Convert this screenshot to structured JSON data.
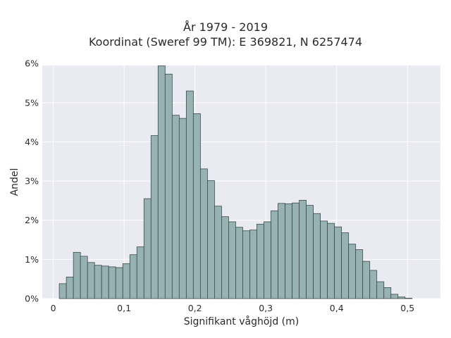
{
  "chart_data": {
    "type": "bar",
    "title": "År 1979 - 2019",
    "subtitle": "Koordinat (Sweref 99 TM): E 369821, N 6257474",
    "xlabel": "Signifikant våghöjd (m)",
    "ylabel": "Andel",
    "xlim": [
      -0.0155,
      0.5465
    ],
    "ylim": [
      0,
      0.0595
    ],
    "x_ticks": [
      {
        "value": 0.0,
        "label": "0"
      },
      {
        "value": 0.1,
        "label": "0,1"
      },
      {
        "value": 0.2,
        "label": "0,2"
      },
      {
        "value": 0.3,
        "label": "0,3"
      },
      {
        "value": 0.4,
        "label": "0,4"
      },
      {
        "value": 0.5,
        "label": "0,5"
      }
    ],
    "y_ticks": [
      {
        "value": 0.0,
        "label": "0%"
      },
      {
        "value": 0.01,
        "label": "1%"
      },
      {
        "value": 0.02,
        "label": "2%"
      },
      {
        "value": 0.03,
        "label": "3%"
      },
      {
        "value": 0.04,
        "label": "4%"
      },
      {
        "value": 0.05,
        "label": "5%"
      },
      {
        "value": 0.06,
        "label": "6%"
      }
    ],
    "bin_start": 0.0085,
    "bin_width": 0.00996,
    "values": [
      0.0038,
      0.0055,
      0.0118,
      0.0108,
      0.0092,
      0.0085,
      0.0083,
      0.0081,
      0.0079,
      0.0089,
      0.0112,
      0.0132,
      0.0255,
      0.0416,
      0.0594,
      0.0573,
      0.0468,
      0.046,
      0.053,
      0.0472,
      0.0331,
      0.0301,
      0.0236,
      0.0209,
      0.0196,
      0.0182,
      0.0173,
      0.0175,
      0.019,
      0.0196,
      0.0224,
      0.0243,
      0.0242,
      0.0244,
      0.0251,
      0.0238,
      0.0217,
      0.0198,
      0.0192,
      0.0183,
      0.0168,
      0.0139,
      0.0125,
      0.0095,
      0.0072,
      0.0043,
      0.0028,
      0.0011,
      0.0004,
      0.0001
    ],
    "grid": true,
    "legend": "none",
    "colors": {
      "bar_fill": "#97b2b2",
      "bar_edge": "#3c4a4a",
      "plot_background": "#eaeaf2",
      "grid": "#ffffff",
      "text": "#2a2a2a"
    }
  }
}
